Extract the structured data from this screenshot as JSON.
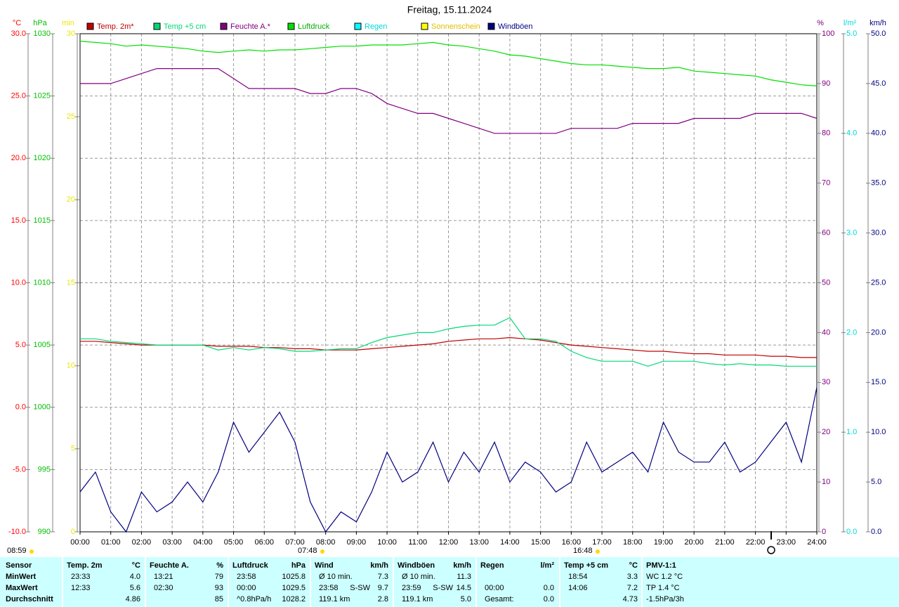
{
  "chart_data": {
    "type": "line",
    "title": "Freitag, 15.11.2024",
    "x": [
      0,
      0.5,
      1,
      1.5,
      2,
      2.5,
      3,
      3.5,
      4,
      4.5,
      5,
      5.5,
      6,
      6.5,
      7,
      7.5,
      8,
      8.5,
      9,
      9.5,
      10,
      10.5,
      11,
      11.5,
      12,
      12.5,
      13,
      13.5,
      14,
      14.5,
      15,
      15.5,
      16,
      16.5,
      17,
      17.5,
      18,
      18.5,
      19,
      19.5,
      20,
      20.5,
      21,
      21.5,
      22,
      22.5,
      23,
      23.5,
      24
    ],
    "xlim": [
      0,
      24
    ],
    "xticks": [
      {
        "value": 0,
        "label": "00:00"
      },
      {
        "value": 1,
        "label": "01:00"
      },
      {
        "value": 2,
        "label": "02:00"
      },
      {
        "value": 3,
        "label": "03:00"
      },
      {
        "value": 4,
        "label": "04:00"
      },
      {
        "value": 5,
        "label": "05:00"
      },
      {
        "value": 6,
        "label": "06:00"
      },
      {
        "value": 7,
        "label": "07:00"
      },
      {
        "value": 8,
        "label": "08:00"
      },
      {
        "value": 9,
        "label": "09:00"
      },
      {
        "value": 10,
        "label": "10:00"
      },
      {
        "value": 11,
        "label": "11:00"
      },
      {
        "value": 12,
        "label": "12:00"
      },
      {
        "value": 13,
        "label": "13:00"
      },
      {
        "value": 14,
        "label": "14:00"
      },
      {
        "value": 15,
        "label": "15:00"
      },
      {
        "value": 16,
        "label": "16:00"
      },
      {
        "value": 17,
        "label": "17:00"
      },
      {
        "value": 18,
        "label": "18:00"
      },
      {
        "value": 19,
        "label": "19:00"
      },
      {
        "value": 20,
        "label": "20:00"
      },
      {
        "value": 21,
        "label": "21:00"
      },
      {
        "value": 22,
        "label": "22:00"
      },
      {
        "value": 23,
        "label": "23:00"
      },
      {
        "value": 24,
        "label": "24:00"
      }
    ],
    "grid": true,
    "axes": [
      {
        "unit": "°C",
        "color": "#ff0000",
        "lim": [
          -10,
          30
        ],
        "ticks": [
          {
            "value": -10,
            "label": "-10.0"
          },
          {
            "value": -5,
            "label": "-5.0"
          },
          {
            "value": 0,
            "label": "0.0"
          },
          {
            "value": 5,
            "label": "5.0"
          },
          {
            "value": 10,
            "label": "10.0"
          },
          {
            "value": 15,
            "label": "15.0"
          },
          {
            "value": 20,
            "label": "20.0"
          },
          {
            "value": 25,
            "label": "25.0"
          },
          {
            "value": 30,
            "label": "30.0"
          }
        ]
      },
      {
        "unit": "hPa",
        "color": "#00c000",
        "lim": [
          990,
          1030
        ],
        "ticks": [
          990,
          995,
          1000,
          1005,
          1010,
          1015,
          1020,
          1025,
          1030
        ]
      },
      {
        "unit": "min",
        "color": "#e8e800",
        "lim": [
          0,
          30
        ],
        "ticks": [
          0,
          5,
          10,
          15,
          20,
          25,
          30
        ]
      },
      {
        "unit": "%",
        "color": "#800080",
        "lim": [
          0,
          100
        ],
        "ticks": [
          0,
          10,
          20,
          30,
          40,
          50,
          60,
          70,
          80,
          90,
          100
        ]
      },
      {
        "unit": "l/m²",
        "color": "#00d8d8",
        "lim": [
          0,
          5
        ],
        "ticks": [
          {
            "value": 0,
            "label": "0.0"
          },
          {
            "value": 1,
            "label": "1.0"
          },
          {
            "value": 2,
            "label": "2.0"
          },
          {
            "value": 3,
            "label": "3.0"
          },
          {
            "value": 4,
            "label": "4.0"
          },
          {
            "value": 5,
            "label": "5.0"
          }
        ]
      },
      {
        "unit": "km/h",
        "color": "#000080",
        "lim": [
          0,
          50
        ],
        "ticks": [
          {
            "value": 0,
            "label": "0.0"
          },
          {
            "value": 5,
            "label": "5.0"
          },
          {
            "value": 10,
            "label": "10.0"
          },
          {
            "value": 15,
            "label": "15.0"
          },
          {
            "value": 20,
            "label": "20.0"
          },
          {
            "value": 25,
            "label": "25.0"
          },
          {
            "value": 30,
            "label": "30.0"
          },
          {
            "value": 35,
            "label": "35.0"
          },
          {
            "value": 40,
            "label": "40.0"
          },
          {
            "value": 45,
            "label": "45.0"
          },
          {
            "value": 50,
            "label": "50.0"
          }
        ]
      }
    ],
    "series": [
      {
        "name": "Temp. 2m*",
        "color": "#c00000",
        "axis": "°C",
        "values": [
          5.3,
          5.3,
          5.2,
          5.1,
          5.0,
          5.0,
          5.0,
          5.0,
          5.0,
          4.9,
          4.9,
          4.9,
          4.8,
          4.8,
          4.7,
          4.7,
          4.6,
          4.6,
          4.6,
          4.7,
          4.8,
          4.9,
          5.0,
          5.1,
          5.3,
          5.4,
          5.5,
          5.5,
          5.6,
          5.5,
          5.4,
          5.2,
          5.0,
          4.9,
          4.8,
          4.7,
          4.6,
          4.5,
          4.5,
          4.4,
          4.3,
          4.3,
          4.2,
          4.2,
          4.2,
          4.1,
          4.1,
          4.0,
          4.0
        ]
      },
      {
        "name": "Temp +5 cm",
        "color": "#00d878",
        "axis": "°C",
        "values": [
          5.5,
          5.5,
          5.3,
          5.2,
          5.1,
          5.0,
          5.0,
          5.0,
          5.0,
          4.6,
          4.8,
          4.6,
          4.8,
          4.7,
          4.5,
          4.5,
          4.6,
          4.7,
          4.7,
          5.2,
          5.6,
          5.8,
          6.0,
          6.0,
          6.3,
          6.5,
          6.6,
          6.6,
          7.2,
          5.5,
          5.5,
          5.3,
          4.5,
          4.0,
          3.7,
          3.7,
          3.7,
          3.3,
          3.7,
          3.7,
          3.7,
          3.5,
          3.4,
          3.5,
          3.4,
          3.4,
          3.3,
          3.3,
          3.3
        ]
      },
      {
        "name": "Feuchte A.*",
        "color": "#800080",
        "axis": "%",
        "values": [
          90,
          90,
          90,
          91,
          92,
          93,
          93,
          93,
          93,
          93,
          91,
          89,
          89,
          89,
          89,
          88,
          88,
          89,
          89,
          88,
          86,
          85,
          84,
          84,
          83,
          82,
          81,
          80,
          80,
          80,
          80,
          80,
          81,
          81,
          81,
          81,
          82,
          82,
          82,
          82,
          83,
          83,
          83,
          83,
          84,
          84,
          84,
          84,
          83
        ]
      },
      {
        "name": "Luftdruck",
        "color": "#00e000",
        "axis": "hPa",
        "values": [
          1029.4,
          1029.3,
          1029.2,
          1029.0,
          1029.1,
          1029.0,
          1028.9,
          1028.8,
          1028.6,
          1028.5,
          1028.6,
          1028.7,
          1028.6,
          1028.7,
          1028.7,
          1028.8,
          1028.9,
          1029.0,
          1029.0,
          1029.1,
          1029.1,
          1029.1,
          1029.2,
          1029.3,
          1029.1,
          1029.0,
          1028.8,
          1028.6,
          1028.3,
          1028.2,
          1028.0,
          1027.8,
          1027.6,
          1027.5,
          1027.5,
          1027.4,
          1027.3,
          1027.2,
          1027.2,
          1027.3,
          1027.0,
          1026.9,
          1026.8,
          1026.7,
          1026.6,
          1026.3,
          1026.1,
          1025.9,
          1025.8
        ]
      },
      {
        "name": "Regen",
        "color": "#00ffff",
        "axis": "l/m²"
      },
      {
        "name": "Sonnenschein",
        "color": "#ffff00",
        "axis": "min"
      },
      {
        "name": "Windböen",
        "color": "#000080",
        "axis": "km/h",
        "values": [
          4,
          6,
          2,
          0,
          4,
          2,
          3,
          5,
          3,
          6,
          11,
          8,
          10,
          12,
          9,
          3,
          0,
          2,
          1,
          4,
          8,
          5,
          6,
          9,
          5,
          8,
          6,
          9,
          5,
          7,
          6,
          4,
          5,
          9,
          6,
          7,
          8,
          6,
          11,
          8,
          7,
          7,
          9,
          6,
          7,
          9,
          11,
          7,
          14.5
        ]
      }
    ],
    "sun_markers": [
      "08:59",
      "07:48",
      "16:48"
    ]
  },
  "table": {
    "columns": [
      {
        "header": [
          "Sensor"
        ],
        "rows": [
          [
            "MinWert"
          ],
          [
            "MaxWert"
          ],
          [
            "Durchschnitt"
          ]
        ]
      },
      {
        "header": [
          "Temp. 2m",
          "°C"
        ],
        "rows": [
          [
            "23:33",
            "4.0"
          ],
          [
            "12:33",
            "5.6"
          ],
          [
            "4.86"
          ]
        ]
      },
      {
        "header": [
          "Feuchte A.",
          "%"
        ],
        "rows": [
          [
            "13:21",
            "79"
          ],
          [
            "02:30",
            "93"
          ],
          [
            "85"
          ]
        ]
      },
      {
        "header": [
          "Luftdruck",
          "hPa"
        ],
        "rows": [
          [
            "23:58",
            "1025.8"
          ],
          [
            "00:00",
            "1029.5"
          ],
          [
            "^0.8hPa/h",
            "1028.2"
          ]
        ]
      },
      {
        "header": [
          "Wind",
          "km/h"
        ],
        "rows": [
          [
            "Ø 10 min.",
            "7.3"
          ],
          [
            "23:58",
            "S-SW",
            "9.7"
          ],
          [
            "119.1 km",
            "2.8"
          ]
        ]
      },
      {
        "header": [
          "Windböen",
          "km/h"
        ],
        "rows": [
          [
            "Ø 10 min.",
            "11.3"
          ],
          [
            "23:59",
            "S-SW",
            "14.5"
          ],
          [
            "119.1 km",
            "5.0"
          ]
        ]
      },
      {
        "header": [
          "Regen",
          "l/m²"
        ],
        "rows": [
          [],
          [
            "00:00",
            "0.0"
          ],
          [
            "Gesamt:",
            "0.0"
          ]
        ]
      },
      {
        "header": [
          "Temp +5 cm",
          "°C"
        ],
        "rows": [
          [
            "18:54",
            "3.3"
          ],
          [
            "14:06",
            "7.2"
          ],
          [
            "4.73"
          ]
        ]
      },
      {
        "header": [
          "PMV-1:1"
        ],
        "rows": [
          [
            "WC 1.2 °C"
          ],
          [
            "TP 1.4 °C"
          ],
          [
            "-1.5hPa/3h"
          ]
        ]
      }
    ]
  }
}
